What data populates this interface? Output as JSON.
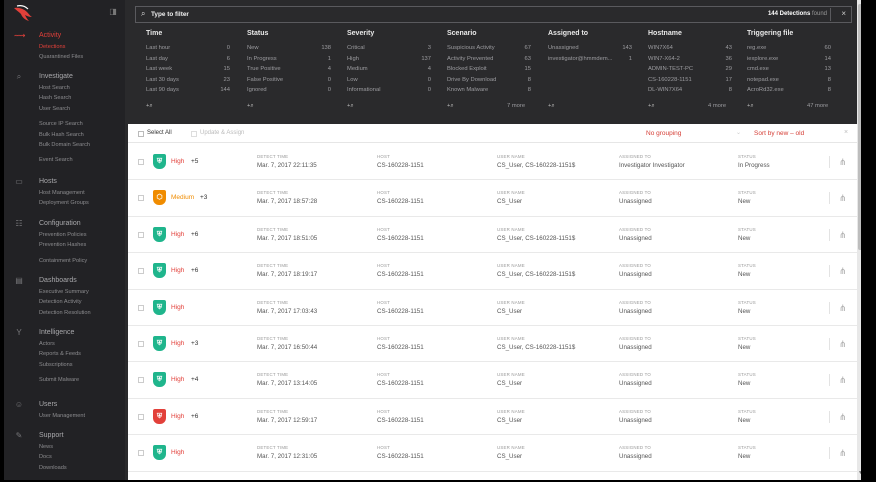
{
  "sidebar": {
    "sections": [
      {
        "icon": "activity-icon",
        "title": "Activity",
        "active": true,
        "items": [
          {
            "label": "Detections",
            "active": true
          },
          {
            "label": "Quarantined Files",
            "active": false
          }
        ]
      },
      {
        "icon": "investigate-icon",
        "title": "Investigate",
        "active": false,
        "items": [
          {
            "label": "Host Search"
          },
          {
            "label": "Hash Search"
          },
          {
            "label": "User Search"
          },
          {
            "label": "Source IP Search"
          },
          {
            "label": "Bulk Hash Search"
          },
          {
            "label": "Bulk Domain Search"
          },
          {
            "label": "Event Search"
          }
        ]
      },
      {
        "icon": "hosts-icon",
        "title": "Hosts",
        "active": false,
        "items": [
          {
            "label": "Host Management"
          },
          {
            "label": "Deployment Groups"
          }
        ]
      },
      {
        "icon": "configuration-icon",
        "title": "Configuration",
        "active": false,
        "items": [
          {
            "label": "Prevention Policies"
          },
          {
            "label": "Prevention Hashes"
          },
          {
            "label": "Containment Policy"
          }
        ]
      },
      {
        "icon": "dashboards-icon",
        "title": "Dashboards",
        "active": false,
        "items": [
          {
            "label": "Executive Summary"
          },
          {
            "label": "Detection Activity"
          },
          {
            "label": "Detection Resolution"
          }
        ]
      },
      {
        "icon": "intelligence-icon",
        "title": "Intelligence",
        "active": false,
        "items": [
          {
            "label": "Actors"
          },
          {
            "label": "Reports & Feeds"
          },
          {
            "label": "Subscriptions"
          },
          {
            "label": "Submit Malware"
          }
        ]
      },
      {
        "icon": "users-icon",
        "title": "Users",
        "active": false,
        "items": [
          {
            "label": "User Management"
          }
        ]
      },
      {
        "icon": "support-icon",
        "title": "Support",
        "active": false,
        "items": [
          {
            "label": "News"
          },
          {
            "label": "Docs"
          },
          {
            "label": "Downloads"
          }
        ]
      }
    ]
  },
  "filter": {
    "placeholder": "Type to filter",
    "count": "144 Detections",
    "found": "found"
  },
  "facets": [
    {
      "title": "Time",
      "rows": [
        {
          "label": "Last hour",
          "count": "0"
        },
        {
          "label": "Last day",
          "count": "6"
        },
        {
          "label": "Last week",
          "count": "15"
        },
        {
          "label": "Last 30 days",
          "count": "23"
        },
        {
          "label": "Last 90 days",
          "count": "144"
        }
      ],
      "more": ""
    },
    {
      "title": "Status",
      "rows": [
        {
          "label": "New",
          "count": "138"
        },
        {
          "label": "In Progress",
          "count": "1"
        },
        {
          "label": "True Positive",
          "count": "4"
        },
        {
          "label": "False Positive",
          "count": "0"
        },
        {
          "label": "Ignored",
          "count": "0"
        }
      ],
      "more": ""
    },
    {
      "title": "Severity",
      "rows": [
        {
          "label": "Critical",
          "count": "3"
        },
        {
          "label": "High",
          "count": "137"
        },
        {
          "label": "Medium",
          "count": "4"
        },
        {
          "label": "Low",
          "count": "0"
        },
        {
          "label": "Informational",
          "count": "0"
        }
      ],
      "more": ""
    },
    {
      "title": "Scenario",
      "rows": [
        {
          "label": "Suspicious Activity",
          "count": "67"
        },
        {
          "label": "Activity Prevented",
          "count": "63"
        },
        {
          "label": "Blocked Exploit",
          "count": "15"
        },
        {
          "label": "Drive By Download",
          "count": "8"
        },
        {
          "label": "Known Malware",
          "count": "8"
        }
      ],
      "more": "7 more"
    },
    {
      "title": "Assigned to",
      "rows": [
        {
          "label": "Unassigned",
          "count": "143"
        },
        {
          "label": "investigator@hmmdem...",
          "count": "1"
        }
      ],
      "more": ""
    },
    {
      "title": "Hostname",
      "rows": [
        {
          "label": "WIN7X64",
          "count": "43"
        },
        {
          "label": "WIN7-X64-2",
          "count": "36"
        },
        {
          "label": "ADMIN-TEST-PC",
          "count": "29"
        },
        {
          "label": "CS-160228-1151",
          "count": "17"
        },
        {
          "label": "DL-WIN7X64",
          "count": "8"
        }
      ],
      "more": "4 more"
    },
    {
      "title": "Triggering file",
      "rows": [
        {
          "label": "reg.exe",
          "count": "60"
        },
        {
          "label": "iexplore.exe",
          "count": "14"
        },
        {
          "label": "cmd.exe",
          "count": "13"
        },
        {
          "label": "notepad.exe",
          "count": "8"
        },
        {
          "label": "AcroRd32.exe",
          "count": "8"
        }
      ],
      "more": "47 more"
    }
  ],
  "list_header": {
    "select_all": "Select All",
    "assign": "Update & Assign",
    "grouping": "No grouping",
    "sort": "Sort by new – old"
  },
  "field_labels": {
    "time": "DETECT TIME",
    "host": "HOST",
    "user": "USER NAME",
    "assigned": "ASSIGNED TO",
    "status": "STATUS"
  },
  "detections": [
    {
      "severity": "High",
      "extra": "+5",
      "color": "#1fb58c",
      "time": "Mar. 7, 2017 22:11:35",
      "host": "CS-160228-1151",
      "user": "CS_User, CS-160228-1151$",
      "assigned": "Investigator Investigator",
      "status": "In Progress"
    },
    {
      "severity": "Medium",
      "extra": "+3",
      "color": "#f08c00",
      "time": "Mar. 7, 2017 18:57:28",
      "host": "CS-160228-1151",
      "user": "CS_User",
      "assigned": "Unassigned",
      "status": "New"
    },
    {
      "severity": "High",
      "extra": "+6",
      "color": "#1fb58c",
      "time": "Mar. 7, 2017 18:51:05",
      "host": "CS-160228-1151",
      "user": "CS_User, CS-160228-1151$",
      "assigned": "Unassigned",
      "status": "New"
    },
    {
      "severity": "High",
      "extra": "+6",
      "color": "#1fb58c",
      "time": "Mar. 7, 2017 18:19:17",
      "host": "CS-160228-1151",
      "user": "CS_User, CS-160228-1151$",
      "assigned": "Unassigned",
      "status": "New"
    },
    {
      "severity": "High",
      "extra": "",
      "color": "#1fb58c",
      "time": "Mar. 7, 2017 17:03:43",
      "host": "CS-160228-1151",
      "user": "CS_User",
      "assigned": "Unassigned",
      "status": "New"
    },
    {
      "severity": "High",
      "extra": "+3",
      "color": "#1fb58c",
      "time": "Mar. 7, 2017 16:50:44",
      "host": "CS-160228-1151",
      "user": "CS_User, CS-160228-1151$",
      "assigned": "Unassigned",
      "status": "New"
    },
    {
      "severity": "High",
      "extra": "+4",
      "color": "#1fb58c",
      "time": "Mar. 7, 2017 13:14:05",
      "host": "CS-160228-1151",
      "user": "CS_User",
      "assigned": "Unassigned",
      "status": "New"
    },
    {
      "severity": "High",
      "extra": "+6",
      "color": "#e2403a",
      "time": "Mar. 7, 2017 12:59:17",
      "host": "CS-160228-1151",
      "user": "CS_User",
      "assigned": "Unassigned",
      "status": "New"
    },
    {
      "severity": "High",
      "extra": "",
      "color": "#1fb58c",
      "time": "Mar. 7, 2017 12:31:05",
      "host": "CS-160228-1151",
      "user": "CS_User",
      "assigned": "Unassigned",
      "status": "New"
    }
  ],
  "colors": {
    "accent": "#e2403a",
    "high": "#1fb58c",
    "medium": "#f08c00"
  }
}
